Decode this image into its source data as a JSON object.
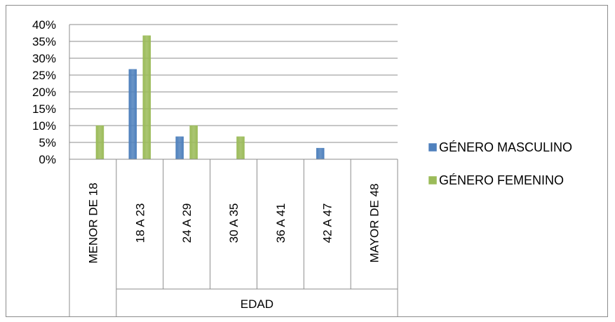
{
  "chart_data": {
    "type": "bar",
    "categories": [
      "MENOR DE 18",
      "18 A 23",
      "24 A 29",
      "30 A 35",
      "36 A 41",
      "42 A 47",
      "MAYOR DE 48"
    ],
    "group_label": "EDAD",
    "series": [
      {
        "name": "GÉNERO MASCULINO",
        "color": "#4F81BD",
        "values": [
          0,
          26.7,
          6.7,
          0,
          0,
          3.3,
          0
        ]
      },
      {
        "name": "GÉNERO FEMENINO",
        "color": "#9BBB59",
        "values": [
          10,
          36.7,
          10,
          6.7,
          0,
          0,
          0
        ]
      }
    ],
    "ylim": [
      0,
      40
    ],
    "yticks": [
      "0%",
      "5%",
      "10%",
      "15%",
      "20%",
      "25%",
      "30%",
      "35%",
      "40%"
    ],
    "grid": true,
    "legend_position": "right"
  }
}
